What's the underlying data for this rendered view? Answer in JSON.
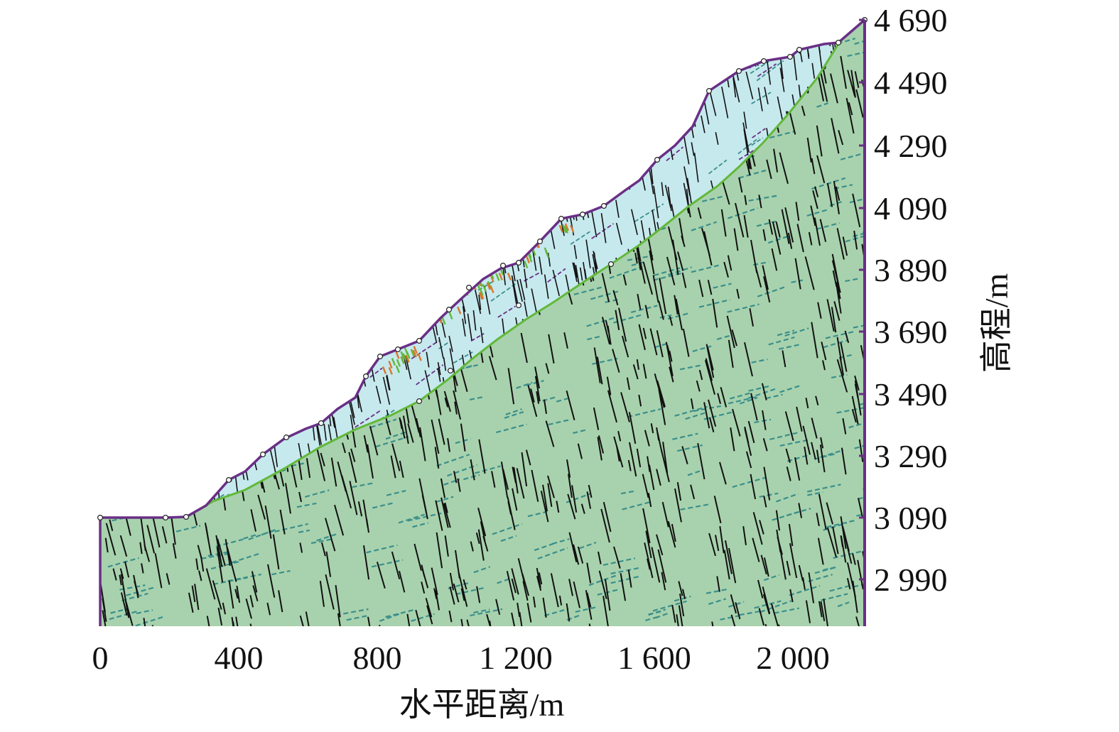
{
  "figure": {
    "xlabel": "水平距离/m",
    "ylabel": "高程/m"
  },
  "x_axis": {
    "range": [
      0,
      2200
    ],
    "ticks": [
      {
        "value": 0,
        "label": "0"
      },
      {
        "value": 400,
        "label": "400"
      },
      {
        "value": 800,
        "label": "800"
      },
      {
        "value": 1200,
        "label": "1 200"
      },
      {
        "value": 1600,
        "label": "1 600"
      },
      {
        "value": 2000,
        "label": "2 000"
      }
    ]
  },
  "y_axis": {
    "ticks": [
      {
        "label": "4 690"
      },
      {
        "label": "4 490"
      },
      {
        "label": "4 290"
      },
      {
        "label": "4 090"
      },
      {
        "label": "3 890"
      },
      {
        "label": "3 690"
      },
      {
        "label": "3 490"
      },
      {
        "label": "3 290"
      },
      {
        "label": "3 090"
      },
      {
        "label": "2 990"
      }
    ]
  },
  "colors": {
    "bedrock": "#a8d2ad",
    "weathered_zone": "#c6e9ee",
    "outline": "#6a2f86",
    "interface": "#62b83a",
    "fractures": "#111111",
    "bedding_joints": "#3b8f8c",
    "collapse_blocks": "#d9772a"
  }
}
